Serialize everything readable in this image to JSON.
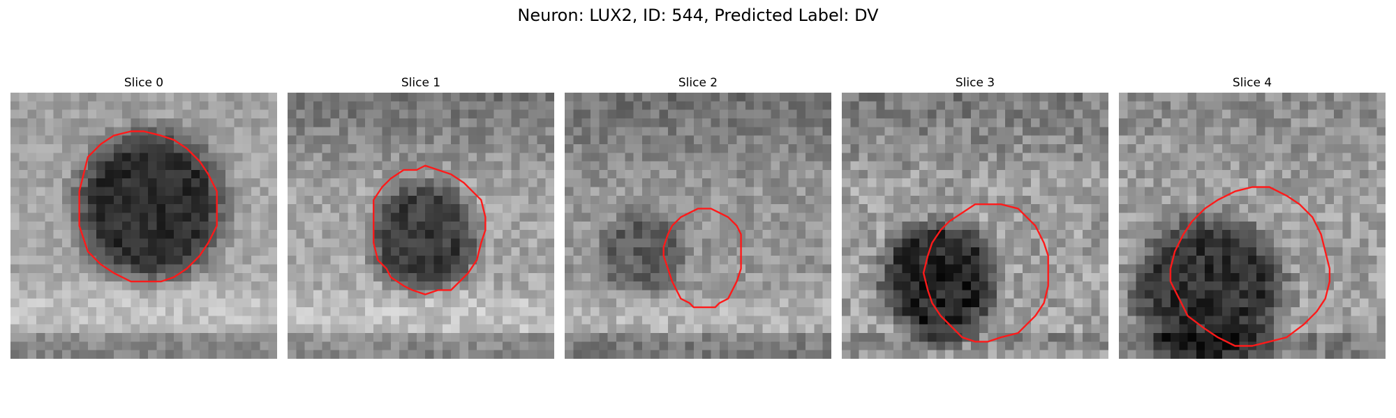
{
  "figure": {
    "title": "Neuron: LUX2, ID: 544, Predicted Label: DV"
  },
  "contour_color": "#ff1a1a",
  "panels": [
    {
      "title": "Slice 0",
      "base_tone": 165,
      "blob_tone": 45,
      "top_shadow": 0.1,
      "noise": 45
    },
    {
      "title": "Slice 1",
      "base_tone": 165,
      "blob_tone": 60,
      "top_shadow": 0.75,
      "noise": 55
    },
    {
      "title": "Slice 2",
      "base_tone": 150,
      "blob_tone": 95,
      "top_shadow": 0.55,
      "noise": 55
    },
    {
      "title": "Slice 3",
      "base_tone": 160,
      "blob_tone": 35,
      "top_shadow": 0.55,
      "noise": 70
    },
    {
      "title": "Slice 4",
      "base_tone": 160,
      "blob_tone": 50,
      "top_shadow": 0.3,
      "noise": 65
    }
  ]
}
